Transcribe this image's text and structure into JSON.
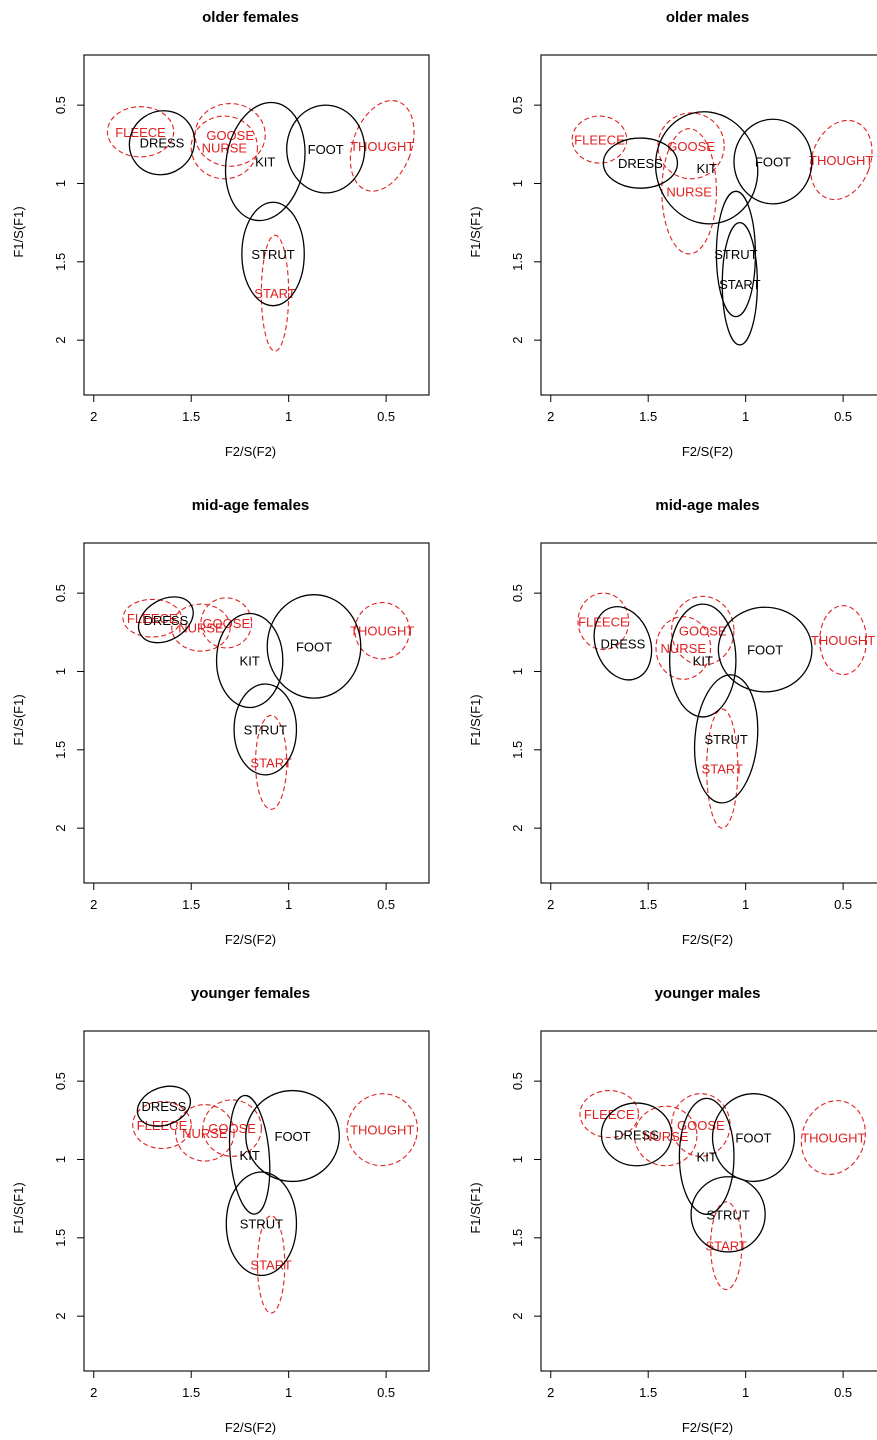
{
  "chart_data": [
    {
      "type": "scatter",
      "title": "older females",
      "xlabel": "F2/S(F2)",
      "ylabel": "F1/S(F1)",
      "xlim": [
        2.05,
        0.28
      ],
      "ylim": [
        2.35,
        0.18
      ],
      "reversed_axes": true,
      "x_ticks": [
        "2",
        "1.5",
        "1",
        "0.5"
      ],
      "y_ticks": [
        "0.5",
        "1",
        "1.5",
        "2"
      ],
      "series": [
        {
          "name": "black",
          "color": "#000000",
          "vowels": [
            {
              "label": "DRESS",
              "x": 1.65,
              "y": 0.74,
              "rx": 0.17,
              "ry": 0.2,
              "angle": -35
            },
            {
              "label": "KIT",
              "x": 1.12,
              "y": 0.86,
              "rx": 0.2,
              "ry": 0.38,
              "angle": 10
            },
            {
              "label": "FOOT",
              "x": 0.81,
              "y": 0.78,
              "rx": 0.2,
              "ry": 0.28,
              "angle": 0
            },
            {
              "label": "STRUT",
              "x": 1.08,
              "y": 1.45,
              "rx": 0.16,
              "ry": 0.33,
              "angle": 0
            }
          ]
        },
        {
          "name": "red",
          "color": "#e02020",
          "vowels": [
            {
              "label": "FLEECE",
              "x": 1.76,
              "y": 0.67,
              "rx": 0.17,
              "ry": 0.16,
              "angle": 0
            },
            {
              "label": "GOOSE",
              "x": 1.3,
              "y": 0.69,
              "rx": 0.18,
              "ry": 0.2,
              "angle": 0
            },
            {
              "label": "NURSE",
              "x": 1.33,
              "y": 0.77,
              "rx": 0.17,
              "ry": 0.2,
              "angle": 0
            },
            {
              "label": "THOUGHT",
              "x": 0.52,
              "y": 0.76,
              "rx": 0.15,
              "ry": 0.3,
              "angle": 20
            },
            {
              "label": "START",
              "x": 1.07,
              "y": 1.7,
              "rx": 0.07,
              "ry": 0.37,
              "angle": 0
            }
          ]
        }
      ]
    },
    {
      "type": "scatter",
      "title": "older males",
      "xlabel": "F2/S(F2)",
      "ylabel": "F1/S(F1)",
      "xlim": [
        2.05,
        0.28
      ],
      "ylim": [
        2.35,
        0.18
      ],
      "reversed_axes": true,
      "x_ticks": [
        "2",
        "1.5",
        "1",
        "0.5"
      ],
      "y_ticks": [
        "0.5",
        "1",
        "1.5",
        "2"
      ],
      "series": [
        {
          "name": "black",
          "color": "#000000",
          "vowels": [
            {
              "label": "DRESS",
              "x": 1.54,
              "y": 0.87,
              "rx": 0.19,
              "ry": 0.16,
              "angle": 0
            },
            {
              "label": "KIT",
              "x": 1.2,
              "y": 0.9,
              "rx": 0.26,
              "ry": 0.36,
              "angle": -15
            },
            {
              "label": "FOOT",
              "x": 0.86,
              "y": 0.86,
              "rx": 0.2,
              "ry": 0.27,
              "angle": 0
            },
            {
              "label": "STRUT",
              "x": 1.05,
              "y": 1.45,
              "rx": 0.1,
              "ry": 0.4,
              "angle": 0
            },
            {
              "label": "START",
              "x": 1.03,
              "y": 1.64,
              "rx": 0.09,
              "ry": 0.39,
              "angle": 0
            }
          ]
        },
        {
          "name": "red",
          "color": "#e02020",
          "vowels": [
            {
              "label": "FLEECE",
              "x": 1.75,
              "y": 0.72,
              "rx": 0.14,
              "ry": 0.15,
              "angle": 0
            },
            {
              "label": "GOOSE",
              "x": 1.28,
              "y": 0.76,
              "rx": 0.17,
              "ry": 0.21,
              "angle": 0
            },
            {
              "label": "NURSE",
              "x": 1.29,
              "y": 1.05,
              "rx": 0.14,
              "ry": 0.4,
              "angle": 0
            },
            {
              "label": "THOUGHT",
              "x": 0.51,
              "y": 0.85,
              "rx": 0.15,
              "ry": 0.26,
              "angle": 20
            }
          ]
        }
      ]
    },
    {
      "type": "scatter",
      "title": "mid-age females",
      "xlabel": "F2/S(F2)",
      "ylabel": "F1/S(F1)",
      "xlim": [
        2.05,
        0.28
      ],
      "ylim": [
        2.35,
        0.18
      ],
      "reversed_axes": true,
      "x_ticks": [
        "2",
        "1.5",
        "1",
        "0.5"
      ],
      "y_ticks": [
        "0.5",
        "1",
        "1.5",
        "2"
      ],
      "series": [
        {
          "name": "black",
          "color": "#000000",
          "vowels": [
            {
              "label": "DRESS",
              "x": 1.63,
              "y": 0.67,
              "rx": 0.15,
              "ry": 0.13,
              "angle": -30
            },
            {
              "label": "KIT",
              "x": 1.2,
              "y": 0.93,
              "rx": 0.17,
              "ry": 0.3,
              "angle": 0
            },
            {
              "label": "FOOT",
              "x": 0.87,
              "y": 0.84,
              "rx": 0.24,
              "ry": 0.33,
              "angle": 0
            },
            {
              "label": "STRUT",
              "x": 1.12,
              "y": 1.37,
              "rx": 0.16,
              "ry": 0.29,
              "angle": 0
            }
          ]
        },
        {
          "name": "red",
          "color": "#e02020",
          "vowels": [
            {
              "label": "FLEECE",
              "x": 1.7,
              "y": 0.66,
              "rx": 0.15,
              "ry": 0.12,
              "angle": 0
            },
            {
              "label": "GOOSE",
              "x": 1.32,
              "y": 0.69,
              "rx": 0.13,
              "ry": 0.16,
              "angle": 0
            },
            {
              "label": "NURSE",
              "x": 1.45,
              "y": 0.72,
              "rx": 0.15,
              "ry": 0.15,
              "angle": 0
            },
            {
              "label": "THOUGHT",
              "x": 0.52,
              "y": 0.74,
              "rx": 0.14,
              "ry": 0.18,
              "angle": 0
            },
            {
              "label": "START",
              "x": 1.09,
              "y": 1.58,
              "rx": 0.08,
              "ry": 0.3,
              "angle": 0
            }
          ]
        }
      ]
    },
    {
      "type": "scatter",
      "title": "mid-age males",
      "xlabel": "F2/S(F2)",
      "ylabel": "F1/S(F1)",
      "xlim": [
        2.05,
        0.28
      ],
      "ylim": [
        2.35,
        0.18
      ],
      "reversed_axes": true,
      "x_ticks": [
        "2",
        "1.5",
        "1",
        "0.5"
      ],
      "y_ticks": [
        "0.5",
        "1",
        "1.5",
        "2"
      ],
      "series": [
        {
          "name": "black",
          "color": "#000000",
          "vowels": [
            {
              "label": "DRESS",
              "x": 1.63,
              "y": 0.82,
              "rx": 0.14,
              "ry": 0.24,
              "angle": -20
            },
            {
              "label": "KIT",
              "x": 1.22,
              "y": 0.93,
              "rx": 0.17,
              "ry": 0.36,
              "angle": 0
            },
            {
              "label": "FOOT",
              "x": 0.9,
              "y": 0.86,
              "rx": 0.24,
              "ry": 0.27,
              "angle": 0
            },
            {
              "label": "STRUT",
              "x": 1.1,
              "y": 1.43,
              "rx": 0.16,
              "ry": 0.41,
              "angle": 5
            }
          ]
        },
        {
          "name": "red",
          "color": "#e02020",
          "vowels": [
            {
              "label": "FLEECE",
              "x": 1.73,
              "y": 0.68,
              "rx": 0.13,
              "ry": 0.18,
              "angle": 0
            },
            {
              "label": "GOOSE",
              "x": 1.22,
              "y": 0.74,
              "rx": 0.16,
              "ry": 0.22,
              "angle": 0
            },
            {
              "label": "NURSE",
              "x": 1.32,
              "y": 0.85,
              "rx": 0.14,
              "ry": 0.2,
              "angle": 0
            },
            {
              "label": "THOUGHT",
              "x": 0.5,
              "y": 0.8,
              "rx": 0.12,
              "ry": 0.22,
              "angle": 0
            },
            {
              "label": "START",
              "x": 1.12,
              "y": 1.62,
              "rx": 0.08,
              "ry": 0.38,
              "angle": 0
            }
          ]
        }
      ]
    },
    {
      "type": "scatter",
      "title": "younger females",
      "xlabel": "F2/S(F2)",
      "ylabel": "F1/S(F1)",
      "xlim": [
        2.05,
        0.28
      ],
      "ylim": [
        2.35,
        0.18
      ],
      "reversed_axes": true,
      "x_ticks": [
        "2",
        "1.5",
        "1",
        "0.5"
      ],
      "y_ticks": [
        "0.5",
        "1",
        "1.5",
        "2"
      ],
      "series": [
        {
          "name": "black",
          "color": "#000000",
          "vowels": [
            {
              "label": "DRESS",
              "x": 1.64,
              "y": 0.66,
              "rx": 0.14,
              "ry": 0.12,
              "angle": -20
            },
            {
              "label": "KIT",
              "x": 1.2,
              "y": 0.97,
              "rx": 0.1,
              "ry": 0.38,
              "angle": -5
            },
            {
              "label": "FOOT",
              "x": 0.98,
              "y": 0.85,
              "rx": 0.24,
              "ry": 0.29,
              "angle": 0
            },
            {
              "label": "STRUT",
              "x": 1.14,
              "y": 1.41,
              "rx": 0.18,
              "ry": 0.33,
              "angle": 0
            }
          ]
        },
        {
          "name": "red",
          "color": "#e02020",
          "vowels": [
            {
              "label": "FLEECE",
              "x": 1.65,
              "y": 0.78,
              "rx": 0.15,
              "ry": 0.15,
              "angle": 0
            },
            {
              "label": "GOOSE",
              "x": 1.29,
              "y": 0.8,
              "rx": 0.15,
              "ry": 0.18,
              "angle": 0
            },
            {
              "label": "NURSE",
              "x": 1.43,
              "y": 0.83,
              "rx": 0.15,
              "ry": 0.18,
              "angle": 0
            },
            {
              "label": "THOUGHT",
              "x": 0.52,
              "y": 0.81,
              "rx": 0.18,
              "ry": 0.23,
              "angle": 20
            },
            {
              "label": "START",
              "x": 1.09,
              "y": 1.67,
              "rx": 0.07,
              "ry": 0.31,
              "angle": 0
            }
          ]
        }
      ]
    },
    {
      "type": "scatter",
      "title": "younger males",
      "xlabel": "F2/S(F2)",
      "ylabel": "F1/S(F1)",
      "xlim": [
        2.05,
        0.28
      ],
      "ylim": [
        2.35,
        0.18
      ],
      "reversed_axes": true,
      "x_ticks": [
        "2",
        "1.5",
        "1",
        "0.5"
      ],
      "y_ticks": [
        "0.5",
        "1",
        "1.5",
        "2"
      ],
      "series": [
        {
          "name": "black",
          "color": "#000000",
          "vowels": [
            {
              "label": "DRESS",
              "x": 1.56,
              "y": 0.84,
              "rx": 0.18,
              "ry": 0.2,
              "angle": 0
            },
            {
              "label": "KIT",
              "x": 1.2,
              "y": 0.98,
              "rx": 0.14,
              "ry": 0.37,
              "angle": 0
            },
            {
              "label": "FOOT",
              "x": 0.96,
              "y": 0.86,
              "rx": 0.21,
              "ry": 0.28,
              "angle": 0
            },
            {
              "label": "STRUT",
              "x": 1.09,
              "y": 1.35,
              "rx": 0.19,
              "ry": 0.24,
              "angle": 0
            }
          ]
        },
        {
          "name": "red",
          "color": "#e02020",
          "vowels": [
            {
              "label": "FLEECE",
              "x": 1.7,
              "y": 0.71,
              "rx": 0.15,
              "ry": 0.15,
              "angle": 0
            },
            {
              "label": "GOOSE",
              "x": 1.23,
              "y": 0.78,
              "rx": 0.15,
              "ry": 0.2,
              "angle": 0
            },
            {
              "label": "NURSE",
              "x": 1.41,
              "y": 0.85,
              "rx": 0.16,
              "ry": 0.19,
              "angle": 0
            },
            {
              "label": "THOUGHT",
              "x": 0.55,
              "y": 0.86,
              "rx": 0.16,
              "ry": 0.24,
              "angle": 20
            },
            {
              "label": "START",
              "x": 1.1,
              "y": 1.55,
              "rx": 0.08,
              "ry": 0.28,
              "angle": 0
            }
          ]
        }
      ]
    }
  ]
}
